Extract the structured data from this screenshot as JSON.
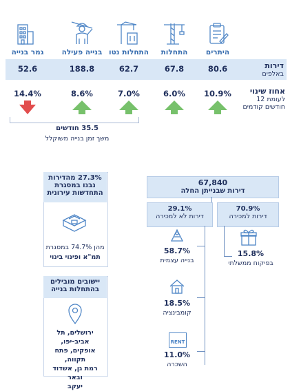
{
  "columns": [
    {
      "title": "היתרים",
      "value": "80.6",
      "change": "10.9%",
      "direction": "up",
      "icon": "permit-document-icon"
    },
    {
      "title": "התחלות",
      "value": "67.8",
      "change": "6.0%",
      "direction": "up",
      "icon": "construction-crane-icon"
    },
    {
      "title": "התחלות נטו",
      "value": "62.7",
      "change": "7.0%",
      "direction": "up",
      "icon": "crane-building-icon"
    },
    {
      "title": "בנייה פעילה",
      "value": "188.8",
      "change": "8.6%",
      "direction": "up",
      "icon": "construction-worker-icon"
    },
    {
      "title": "גמר בנייה",
      "value": "52.6",
      "change": "14.4%",
      "direction": "down",
      "icon": "finished-building-icon"
    }
  ],
  "row_labels": {
    "dwellings_main": "דירות",
    "dwellings_sub": "באלפים",
    "change_main": "אחוז שינוי",
    "change_sub_1": "לעומת 12",
    "change_sub_2": "חודשים קודמים"
  },
  "construction_time": {
    "value": "35.5 חודשים",
    "label": "משך זמן בנייה משוקלל"
  },
  "total": {
    "value": "67,840",
    "label": "דירות שבנייתן החלה"
  },
  "for_sale": {
    "value": "70.9%",
    "label": "דירות למכירה"
  },
  "not_for_sale": {
    "value": "29.1%",
    "label": "דירות לא למכירה"
  },
  "subsidized": {
    "value": "15.8%",
    "label": "בפיקוח ממשלתי"
  },
  "breakdown": [
    {
      "value": "58.7%",
      "label": "בנייה עצמית",
      "icon": "self-build-icon"
    },
    {
      "value": "18.5%",
      "label": "קומבינציה",
      "icon": "house-combination-icon"
    },
    {
      "value": "11.0%",
      "label": "השכרה",
      "icon": "rent-sign-icon",
      "sign_text": "RENT"
    }
  ],
  "urban_renewal": {
    "line1": "27.3% מהדירות",
    "line2": "נבנו במסגרת",
    "line3": "התחדשות עירונית",
    "detail1": "מהן 74.7% במסגרת",
    "detail2": "תמ\"א ופינוי בינוי"
  },
  "leading_cities": {
    "title1": "יישובים מובילים",
    "title2": "בהתחלות בנייה",
    "cities1": "ירושלים, תל אביב-יפו,",
    "cities2": "אופקים, פתח תקווה,",
    "cities3": "רמת גן, אשדוד ובאר",
    "cities4": "יעקב"
  },
  "colors": {
    "up": "#77c16b",
    "down": "#e24d4d",
    "band": "#d9e7f6",
    "accent": "#3a6fb0",
    "text": "#1f2f5c"
  }
}
